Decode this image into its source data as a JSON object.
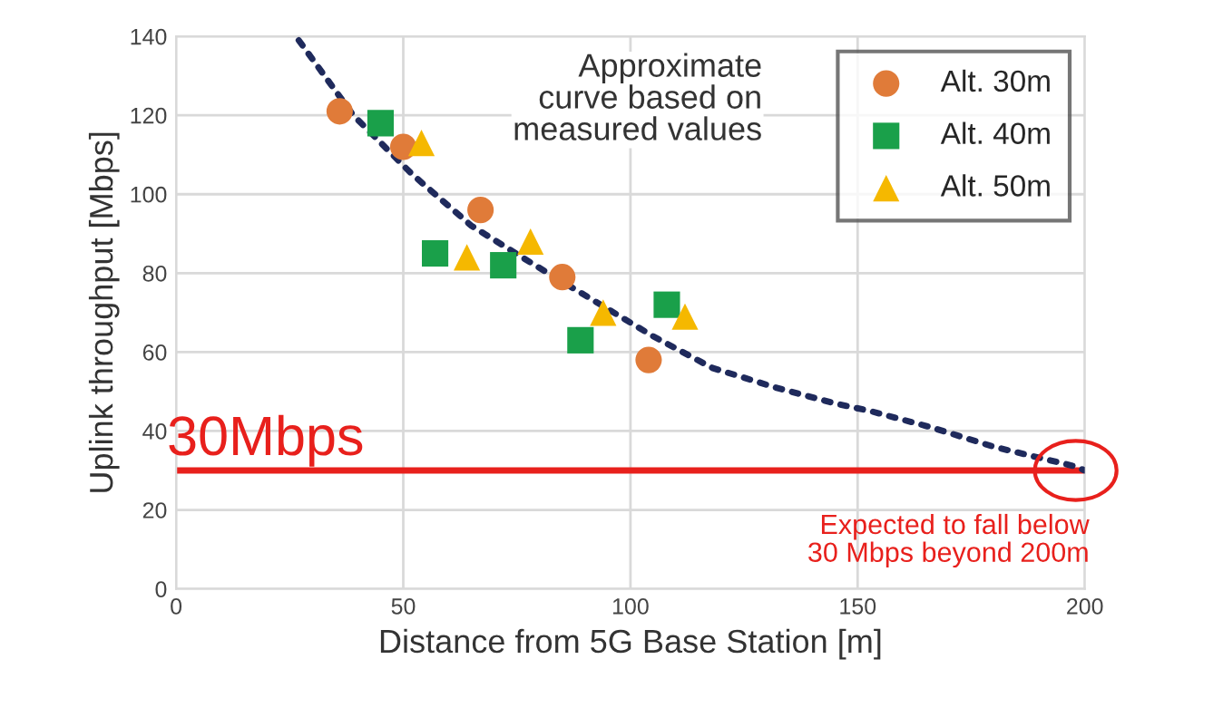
{
  "chart_data": {
    "type": "scatter",
    "xlabel": "Distance from 5G Base Station [m]",
    "ylabel": "Uplink throughput [Mbps]",
    "xlim": [
      0,
      200
    ],
    "xticks": [
      0,
      50,
      100,
      150,
      200
    ],
    "ylim": [
      0,
      140
    ],
    "yticks": [
      0,
      20,
      40,
      60,
      80,
      100,
      120,
      140
    ],
    "grid": true,
    "legend": "top right",
    "series": [
      {
        "name": "Alt. 30m",
        "marker": "circle",
        "color": "#e07b39",
        "x": [
          36,
          50,
          67,
          85,
          104
        ],
        "values": [
          121,
          112,
          96,
          79,
          58
        ]
      },
      {
        "name": "Alt. 40m",
        "marker": "square",
        "color": "#1aa04a",
        "x": [
          45,
          57,
          72,
          89,
          108
        ],
        "values": [
          118,
          85,
          82,
          63,
          72
        ]
      },
      {
        "name": "Alt. 50m",
        "marker": "triangle",
        "color": "#f5b800",
        "x": [
          54,
          64,
          78,
          94,
          112
        ],
        "values": [
          113,
          84,
          88,
          70,
          69
        ]
      },
      {
        "type": "line",
        "line_style": "dotted",
        "color": "#1f2a5c",
        "x": [
          27,
          39,
          52,
          65,
          79,
          92,
          105,
          118,
          132,
          145,
          153,
          166,
          180,
          198,
          200
        ],
        "values": [
          139,
          120,
          105,
          92,
          82,
          73,
          64,
          56,
          51,
          47,
          45,
          41,
          36,
          31,
          30
        ]
      }
    ],
    "ref_lines": [
      {
        "axis": "y",
        "value": 30,
        "label": "30Mbps",
        "color": "#e8201c"
      }
    ],
    "annotations": [
      {
        "text": "Approximate\ncurve based on\nmeasured values"
      },
      {
        "text": "Expected to fall below\n30 Mbps beyond 200m",
        "x": 200,
        "y": 30
      }
    ]
  }
}
